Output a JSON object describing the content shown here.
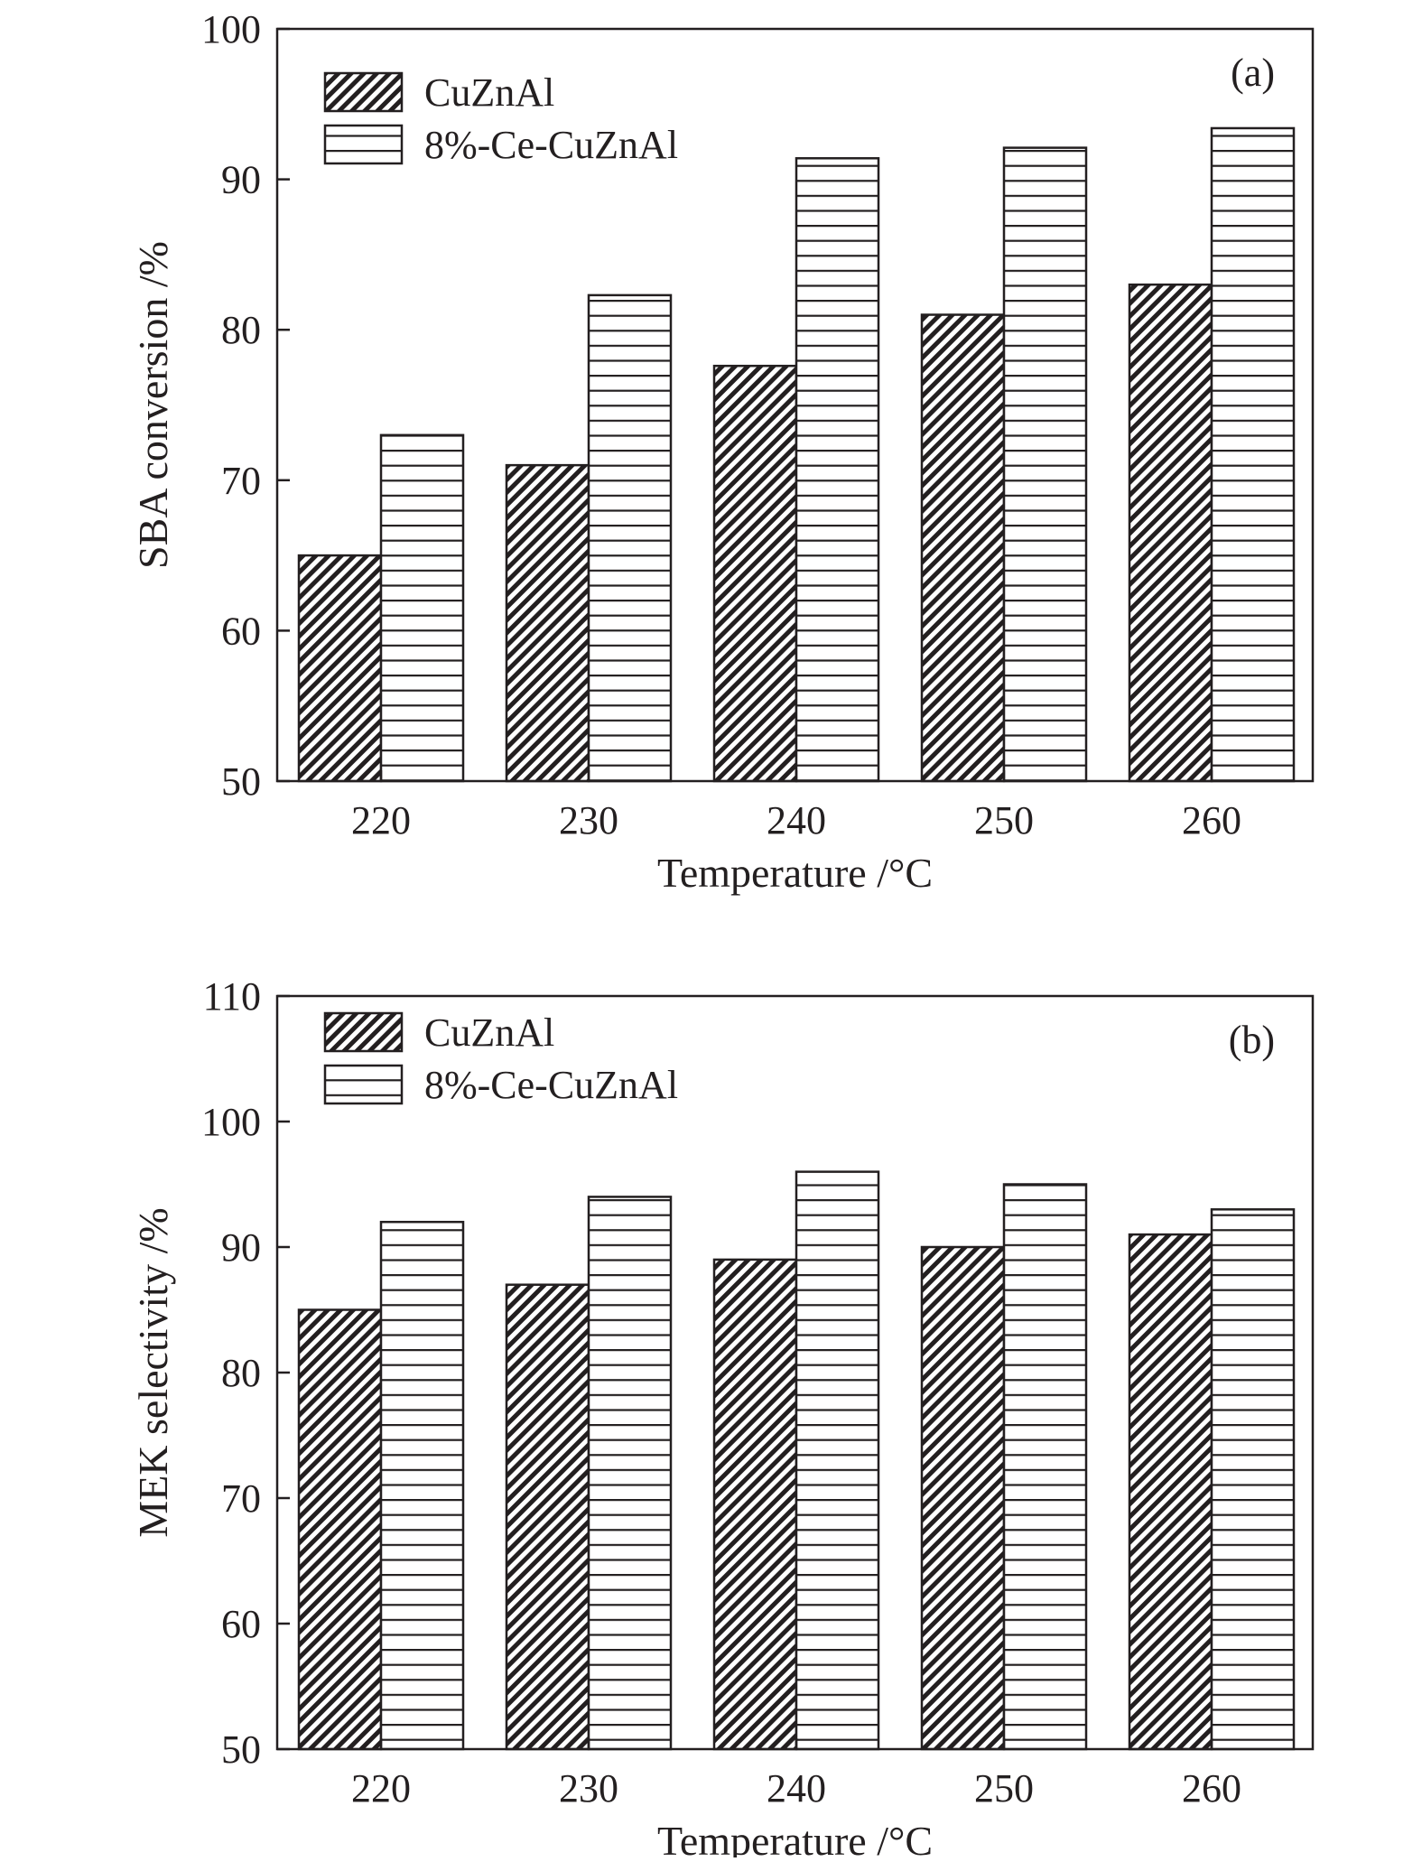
{
  "colors": {
    "ink": "#231f20",
    "background": "#ffffff"
  },
  "chart_data": [
    {
      "type": "bar",
      "panel_label": "(a)",
      "categories": [
        "220",
        "230",
        "240",
        "250",
        "260"
      ],
      "series": [
        {
          "name": "CuZnAl",
          "pattern": "diagonal-hatch",
          "values": [
            65,
            71,
            77.6,
            81,
            83
          ]
        },
        {
          "name": "8%-Ce-CuZnAl",
          "pattern": "horizontal-lines",
          "values": [
            73,
            82.3,
            91.4,
            92.1,
            93.4
          ]
        }
      ],
      "xlabel": "Temperature /°C",
      "ylabel": "SBA conversion /%",
      "ylim": [
        50,
        100
      ],
      "yticks": [
        "50",
        "60",
        "70",
        "80",
        "90",
        "100"
      ],
      "grid": false,
      "legend_position": "top-left"
    },
    {
      "type": "bar",
      "panel_label": "(b)",
      "categories": [
        "220",
        "230",
        "240",
        "250",
        "260"
      ],
      "series": [
        {
          "name": "CuZnAl",
          "pattern": "diagonal-hatch",
          "values": [
            85,
            87,
            89,
            90,
            91
          ]
        },
        {
          "name": "8%-Ce-CuZnAl",
          "pattern": "horizontal-lines",
          "values": [
            92,
            94,
            96,
            95,
            93
          ]
        }
      ],
      "xlabel": "Temperature /°C",
      "ylabel": "MEK selectivity /%",
      "ylim": [
        50,
        110
      ],
      "yticks": [
        "50",
        "60",
        "70",
        "80",
        "90",
        "100",
        "110"
      ],
      "grid": false,
      "legend_position": "top-left"
    }
  ]
}
